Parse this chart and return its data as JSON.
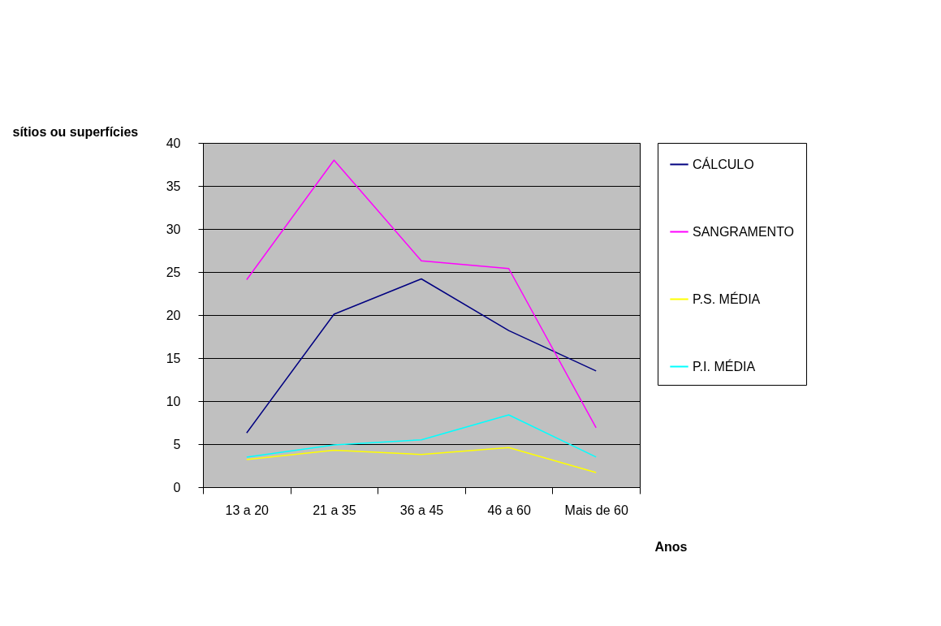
{
  "chart_data": {
    "type": "line",
    "xlabel": "Anos",
    "ylabel": "sítios ou superfícies",
    "categories": [
      "13 a 20",
      "21 a 35",
      "36 a 45",
      "46 a 60",
      "Mais de 60"
    ],
    "series": [
      {
        "name": "CÁLCULO",
        "color": "#000080",
        "values": [
          6.3,
          20.1,
          24.2,
          18.2,
          13.5
        ]
      },
      {
        "name": "SANGRAMENTO",
        "color": "#ff00ff",
        "values": [
          24.1,
          38.0,
          26.3,
          25.4,
          6.9
        ]
      },
      {
        "name": "P.S. MÉDIA",
        "color": "#ffff00",
        "values": [
          3.2,
          4.3,
          3.8,
          4.6,
          1.7
        ]
      },
      {
        "name": "P.I. MÉDIA",
        "color": "#00ffff",
        "values": [
          3.5,
          4.9,
          5.5,
          8.4,
          3.5
        ]
      }
    ],
    "ylim": [
      0,
      40
    ],
    "yticks": [
      0,
      5,
      10,
      15,
      20,
      25,
      30,
      35,
      40
    ],
    "grid": "y",
    "legend": "right",
    "marker": "none",
    "line_style": "solid"
  }
}
